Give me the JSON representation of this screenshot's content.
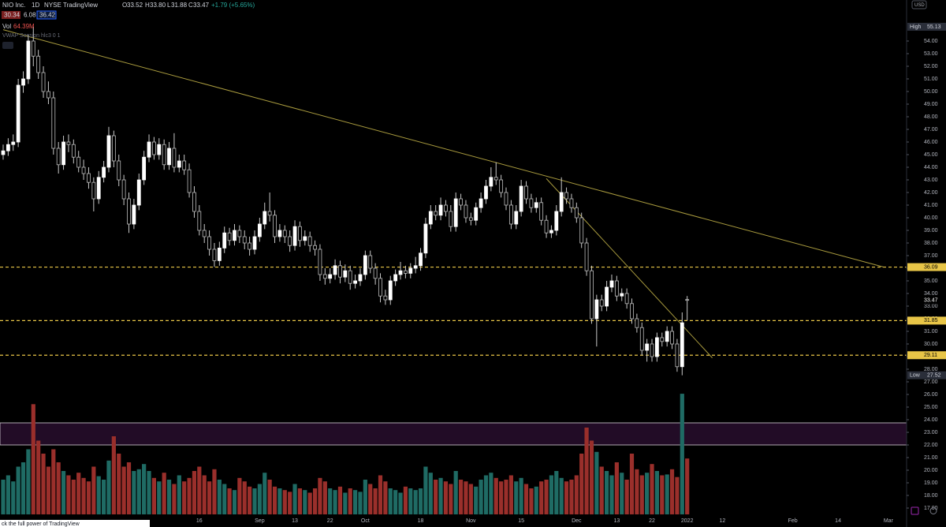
{
  "chart_data": {
    "type": "candlestick",
    "title": "NIO Inc.",
    "interval": "1D",
    "exchange": "NYSE",
    "source": "TradingView",
    "currency": "USD",
    "legend_letters": [
      "O",
      "H",
      "L",
      "C"
    ],
    "legend_values": [
      "33.52",
      "33.80",
      "31.88",
      "33.47"
    ],
    "legend_change": "+1.79 (+5.65%)",
    "indicator_values": [
      "30.34",
      "6.08",
      "36.42"
    ],
    "volume_name": "Vol",
    "volume_value_label": "64.39M",
    "vwap_label": "VWAP Session hlc3 0 1",
    "high_label": "High",
    "low_label": "Low",
    "banner": "ck the full power of TradingView",
    "up_color": "#ffffff",
    "down_color": "#000000",
    "volume_up_color": "#1f6b64",
    "volume_down_color": "#9a2f2b",
    "grid": false,
    "ylim": [
      16.5,
      57.25
    ],
    "yticks": [
      {
        "value": 17,
        "label": "17.00"
      },
      {
        "value": 18,
        "label": "18.00"
      },
      {
        "value": 19,
        "label": "19.00"
      },
      {
        "value": 20,
        "label": "20.00"
      },
      {
        "value": 21,
        "label": "21.00"
      },
      {
        "value": 22,
        "label": "22.00"
      },
      {
        "value": 23,
        "label": "23.00"
      },
      {
        "value": 24,
        "label": "24.00"
      },
      {
        "value": 25,
        "label": "25.00"
      },
      {
        "value": 26,
        "label": "26.00"
      },
      {
        "value": 27,
        "label": "27.00"
      },
      {
        "value": 28,
        "label": "28.00"
      },
      {
        "value": 29,
        "label": "29.00"
      },
      {
        "value": 30,
        "label": "30.00"
      },
      {
        "value": 31,
        "label": "31.00"
      },
      {
        "value": 32,
        "label": "32.00"
      },
      {
        "value": 33,
        "label": "33.00"
      },
      {
        "value": 34,
        "label": "34.00"
      },
      {
        "value": 35,
        "label": "35.00"
      },
      {
        "value": 36,
        "label": "36.00"
      },
      {
        "value": 37,
        "label": "37.00"
      },
      {
        "value": 38,
        "label": "38.00"
      },
      {
        "value": 39,
        "label": "39.00"
      },
      {
        "value": 40,
        "label": "40.00"
      },
      {
        "value": 41,
        "label": "41.00"
      },
      {
        "value": 42,
        "label": "42.00"
      },
      {
        "value": 43,
        "label": "43.00"
      },
      {
        "value": 44,
        "label": "44.00"
      },
      {
        "value": 45,
        "label": "45.00"
      },
      {
        "value": 46,
        "label": "46.00"
      },
      {
        "value": 47,
        "label": "47.00"
      },
      {
        "value": 48,
        "label": "48.00"
      },
      {
        "value": 49,
        "label": "49.00"
      },
      {
        "value": 50,
        "label": "50.00"
      },
      {
        "value": 51,
        "label": "51.00"
      },
      {
        "value": 52,
        "label": "52.00"
      },
      {
        "value": 53,
        "label": "53.00"
      },
      {
        "value": 54,
        "label": "54.00"
      }
    ],
    "categories": [
      null,
      null,
      null,
      null,
      null,
      null,
      null,
      null,
      null,
      null,
      null,
      null,
      null,
      null,
      null,
      null,
      null,
      null,
      null,
      null,
      null,
      null,
      null,
      null,
      null,
      null,
      null,
      null,
      null,
      null,
      null,
      null,
      null,
      null,
      null,
      null,
      null,
      null,
      null,
      "16",
      null,
      null,
      null,
      null,
      null,
      null,
      null,
      null,
      null,
      null,
      null,
      "Sep",
      null,
      null,
      null,
      null,
      null,
      null,
      "13",
      null,
      null,
      null,
      null,
      null,
      null,
      "22",
      null,
      null,
      null,
      null,
      null,
      null,
      "Oct",
      null,
      null,
      null,
      null,
      null,
      null,
      null,
      null,
      null,
      null,
      "18",
      null,
      null,
      null,
      null,
      null,
      null,
      null,
      null,
      null,
      "Nov",
      null,
      null,
      null,
      null,
      null,
      null,
      null,
      null,
      null,
      "15",
      null,
      null,
      null,
      null,
      null,
      null,
      null,
      null,
      null,
      null,
      "Dec",
      null,
      null,
      null,
      null,
      null,
      null,
      null,
      "13",
      null,
      null,
      null,
      null,
      null,
      null,
      "22",
      null,
      null,
      null,
      null,
      null,
      null,
      "2022"
    ],
    "future_labels": [
      "12",
      "Feb",
      "14",
      "Mar"
    ],
    "candles": [
      [
        45.0,
        45.8,
        44.6,
        45.3
      ],
      [
        45.3,
        46.3,
        44.9,
        45.8
      ],
      [
        45.8,
        46.6,
        45.3,
        46.0
      ],
      [
        46.0,
        51.0,
        45.6,
        50.5
      ],
      [
        50.5,
        51.6,
        49.9,
        51.0
      ],
      [
        51.0,
        54.5,
        50.6,
        54.0
      ],
      [
        54.0,
        55.13,
        52.0,
        52.8
      ],
      [
        52.8,
        53.3,
        51.0,
        51.5
      ],
      [
        51.5,
        52.0,
        49.5,
        50.0
      ],
      [
        50.0,
        50.8,
        49.0,
        49.5
      ],
      [
        49.5,
        50.0,
        45.0,
        45.5
      ],
      [
        45.5,
        46.0,
        43.5,
        44.2
      ],
      [
        44.2,
        46.5,
        43.8,
        46.0
      ],
      [
        46.0,
        46.6,
        45.2,
        45.8
      ],
      [
        45.8,
        46.2,
        44.3,
        44.8
      ],
      [
        44.8,
        45.3,
        43.6,
        44.0
      ],
      [
        44.0,
        44.6,
        43.0,
        43.5
      ],
      [
        43.5,
        44.0,
        42.3,
        42.8
      ],
      [
        42.8,
        43.2,
        40.5,
        41.5
      ],
      [
        41.5,
        43.7,
        41.1,
        43.2
      ],
      [
        43.2,
        44.5,
        42.8,
        44.0
      ],
      [
        44.0,
        47.2,
        43.6,
        46.5
      ],
      [
        46.5,
        46.9,
        44.0,
        44.5
      ],
      [
        44.5,
        45.0,
        42.5,
        43.0
      ],
      [
        43.0,
        43.4,
        41.0,
        41.5
      ],
      [
        41.5,
        42.0,
        38.8,
        39.5
      ],
      [
        39.5,
        41.5,
        39.1,
        41.0
      ],
      [
        41.0,
        43.5,
        40.6,
        43.0
      ],
      [
        43.0,
        45.3,
        42.6,
        44.8
      ],
      [
        44.8,
        46.6,
        44.4,
        46.0
      ],
      [
        46.0,
        46.4,
        44.6,
        45.0
      ],
      [
        45.0,
        46.3,
        44.6,
        45.8
      ],
      [
        45.8,
        46.2,
        43.8,
        44.2
      ],
      [
        44.2,
        46.0,
        43.8,
        45.5
      ],
      [
        45.5,
        46.7,
        43.6,
        44.0
      ],
      [
        44.0,
        45.0,
        43.6,
        44.5
      ],
      [
        44.5,
        45.0,
        43.4,
        43.8
      ],
      [
        43.8,
        44.3,
        41.6,
        42.0
      ],
      [
        42.0,
        42.5,
        40.0,
        40.5
      ],
      [
        40.5,
        41.0,
        38.6,
        39.0
      ],
      [
        39.0,
        39.5,
        38.0,
        38.5
      ],
      [
        38.5,
        39.0,
        37.0,
        37.5
      ],
      [
        37.5,
        38.0,
        36.1,
        36.6
      ],
      [
        36.6,
        38.1,
        36.2,
        37.6
      ],
      [
        37.6,
        39.3,
        37.2,
        38.8
      ],
      [
        38.8,
        39.2,
        37.8,
        38.2
      ],
      [
        38.2,
        39.5,
        37.8,
        39.0
      ],
      [
        39.0,
        39.4,
        38.0,
        38.5
      ],
      [
        38.5,
        39.0,
        37.5,
        38.0
      ],
      [
        38.0,
        38.5,
        37.0,
        37.5
      ],
      [
        37.5,
        39.0,
        37.1,
        38.5
      ],
      [
        38.5,
        40.0,
        38.1,
        39.5
      ],
      [
        39.5,
        41.2,
        39.1,
        40.5
      ],
      [
        40.5,
        42.0,
        39.7,
        40.2
      ],
      [
        40.2,
        40.6,
        38.0,
        38.5
      ],
      [
        38.5,
        39.5,
        38.1,
        39.0
      ],
      [
        39.0,
        39.4,
        38.0,
        38.5
      ],
      [
        38.5,
        39.0,
        37.3,
        37.8
      ],
      [
        37.8,
        39.8,
        37.4,
        39.3
      ],
      [
        39.3,
        39.7,
        37.7,
        38.2
      ],
      [
        38.2,
        39.0,
        37.8,
        38.5
      ],
      [
        38.5,
        38.9,
        37.3,
        37.8
      ],
      [
        37.8,
        38.2,
        37.0,
        37.5
      ],
      [
        37.5,
        37.9,
        35.0,
        35.5
      ],
      [
        35.5,
        36.0,
        34.7,
        35.2
      ],
      [
        35.2,
        36.0,
        34.8,
        35.5
      ],
      [
        35.5,
        36.7,
        35.1,
        36.2
      ],
      [
        36.2,
        36.6,
        34.8,
        35.3
      ],
      [
        35.3,
        36.3,
        34.9,
        35.8
      ],
      [
        35.8,
        36.2,
        34.3,
        34.8
      ],
      [
        34.8,
        35.5,
        34.4,
        35.0
      ],
      [
        35.0,
        36.0,
        34.6,
        35.5
      ],
      [
        35.5,
        37.4,
        35.1,
        37.0
      ],
      [
        37.0,
        37.4,
        35.6,
        36.0
      ],
      [
        36.0,
        36.4,
        34.7,
        35.2
      ],
      [
        35.2,
        35.6,
        33.3,
        33.8
      ],
      [
        33.8,
        34.3,
        33.1,
        33.5
      ],
      [
        33.5,
        35.4,
        33.1,
        35.0
      ],
      [
        35.0,
        35.9,
        34.6,
        35.5
      ],
      [
        35.5,
        36.5,
        35.1,
        35.8
      ],
      [
        35.8,
        36.2,
        35.2,
        35.6
      ],
      [
        35.6,
        36.4,
        35.2,
        36.0
      ],
      [
        36.0,
        36.9,
        35.6,
        36.2
      ],
      [
        36.2,
        37.6,
        35.8,
        37.2
      ],
      [
        37.2,
        40.0,
        36.8,
        39.5
      ],
      [
        39.5,
        41.0,
        39.1,
        40.5
      ],
      [
        40.5,
        41.0,
        39.8,
        40.2
      ],
      [
        40.2,
        41.6,
        39.8,
        41.0
      ],
      [
        41.0,
        41.4,
        40.1,
        40.5
      ],
      [
        40.5,
        41.0,
        38.9,
        39.3
      ],
      [
        39.3,
        42.0,
        38.9,
        41.5
      ],
      [
        41.5,
        41.9,
        40.6,
        41.0
      ],
      [
        41.0,
        41.4,
        39.6,
        40.0
      ],
      [
        40.0,
        40.4,
        39.4,
        39.8
      ],
      [
        39.8,
        41.2,
        39.4,
        40.8
      ],
      [
        40.8,
        42.0,
        40.4,
        41.5
      ],
      [
        41.5,
        43.0,
        41.1,
        42.5
      ],
      [
        42.5,
        44.0,
        42.1,
        43.2
      ],
      [
        43.2,
        44.4,
        42.6,
        43.0
      ],
      [
        43.0,
        43.4,
        41.6,
        42.0
      ],
      [
        42.0,
        42.4,
        40.6,
        41.0
      ],
      [
        41.0,
        41.4,
        39.1,
        39.5
      ],
      [
        39.5,
        41.0,
        39.1,
        40.5
      ],
      [
        40.5,
        43.0,
        40.1,
        42.5
      ],
      [
        42.5,
        42.9,
        41.1,
        41.5
      ],
      [
        41.5,
        41.9,
        40.4,
        40.8
      ],
      [
        40.8,
        41.6,
        40.4,
        41.2
      ],
      [
        41.2,
        41.6,
        39.4,
        39.8
      ],
      [
        39.8,
        40.2,
        38.4,
        38.8
      ],
      [
        38.8,
        39.4,
        38.4,
        39.0
      ],
      [
        39.0,
        41.0,
        38.6,
        40.5
      ],
      [
        40.5,
        43.2,
        40.1,
        42.0
      ],
      [
        42.0,
        42.4,
        41.1,
        41.5
      ],
      [
        41.5,
        41.9,
        40.4,
        40.8
      ],
      [
        40.8,
        41.2,
        39.6,
        40.0
      ],
      [
        40.0,
        40.4,
        37.6,
        38.0
      ],
      [
        38.0,
        38.4,
        35.4,
        35.8
      ],
      [
        35.8,
        36.2,
        31.6,
        32.0
      ],
      [
        32.0,
        33.9,
        29.8,
        33.5
      ],
      [
        33.5,
        33.9,
        32.6,
        33.0
      ],
      [
        33.0,
        35.0,
        32.6,
        34.5
      ],
      [
        34.5,
        35.5,
        34.1,
        35.0
      ],
      [
        35.0,
        35.4,
        33.4,
        33.8
      ],
      [
        33.8,
        34.4,
        33.4,
        34.0
      ],
      [
        34.0,
        34.4,
        32.8,
        33.2
      ],
      [
        33.2,
        33.6,
        31.6,
        32.0
      ],
      [
        32.0,
        32.4,
        30.9,
        31.3
      ],
      [
        31.3,
        31.7,
        29.1,
        29.5
      ],
      [
        29.5,
        30.4,
        28.6,
        30.0
      ],
      [
        30.0,
        30.4,
        28.6,
        29.0
      ],
      [
        29.0,
        30.9,
        28.6,
        30.5
      ],
      [
        30.5,
        30.9,
        29.8,
        30.2
      ],
      [
        30.2,
        31.4,
        29.8,
        31.0
      ],
      [
        31.0,
        31.4,
        29.6,
        30.0
      ],
      [
        30.0,
        30.4,
        27.8,
        28.2
      ],
      [
        28.2,
        32.5,
        27.52,
        31.68
      ],
      [
        33.52,
        33.8,
        31.88,
        33.47
      ]
    ],
    "volume": [
      40,
      45,
      38,
      55,
      60,
      75,
      127,
      85,
      70,
      55,
      75,
      60,
      50,
      45,
      40,
      48,
      42,
      38,
      55,
      44,
      40,
      62,
      90,
      70,
      55,
      60,
      50,
      52,
      58,
      50,
      42,
      38,
      48,
      40,
      35,
      45,
      38,
      42,
      50,
      55,
      45,
      38,
      52,
      40,
      35,
      30,
      28,
      42,
      38,
      32,
      30,
      35,
      48,
      40,
      32,
      30,
      28,
      26,
      35,
      30,
      28,
      25,
      30,
      42,
      38,
      30,
      28,
      32,
      25,
      30,
      28,
      26,
      40,
      35,
      30,
      45,
      38,
      30,
      28,
      25,
      32,
      30,
      28,
      30,
      55,
      48,
      40,
      42,
      38,
      35,
      50,
      40,
      38,
      35,
      32,
      40,
      45,
      48,
      42,
      38,
      40,
      45,
      38,
      42,
      35,
      30,
      32,
      38,
      40,
      45,
      50,
      42,
      38,
      40,
      45,
      70,
      100,
      85,
      72,
      55,
      50,
      45,
      60,
      48,
      40,
      70,
      52,
      45,
      48,
      58,
      50,
      45,
      46,
      52,
      43,
      139,
      64.39
    ],
    "hlines": [
      {
        "value": 36.09,
        "color": "#e8c547"
      },
      {
        "value": 31.85,
        "color": "#e8c547"
      },
      {
        "value": 29.11,
        "color": "#e8c547"
      }
    ],
    "trendlines": [
      {
        "from": [
          0,
          54.9
        ],
        "to": [
          175,
          36.1
        ],
        "color": "#a99b3e"
      },
      {
        "from": [
          108,
          43.1
        ],
        "to": [
          141,
          28.9
        ],
        "color": "#a99b3e"
      }
    ],
    "zone": {
      "low": 22.0,
      "high": 23.75,
      "color": "#220c26",
      "border": "#d8d0d8"
    }
  }
}
